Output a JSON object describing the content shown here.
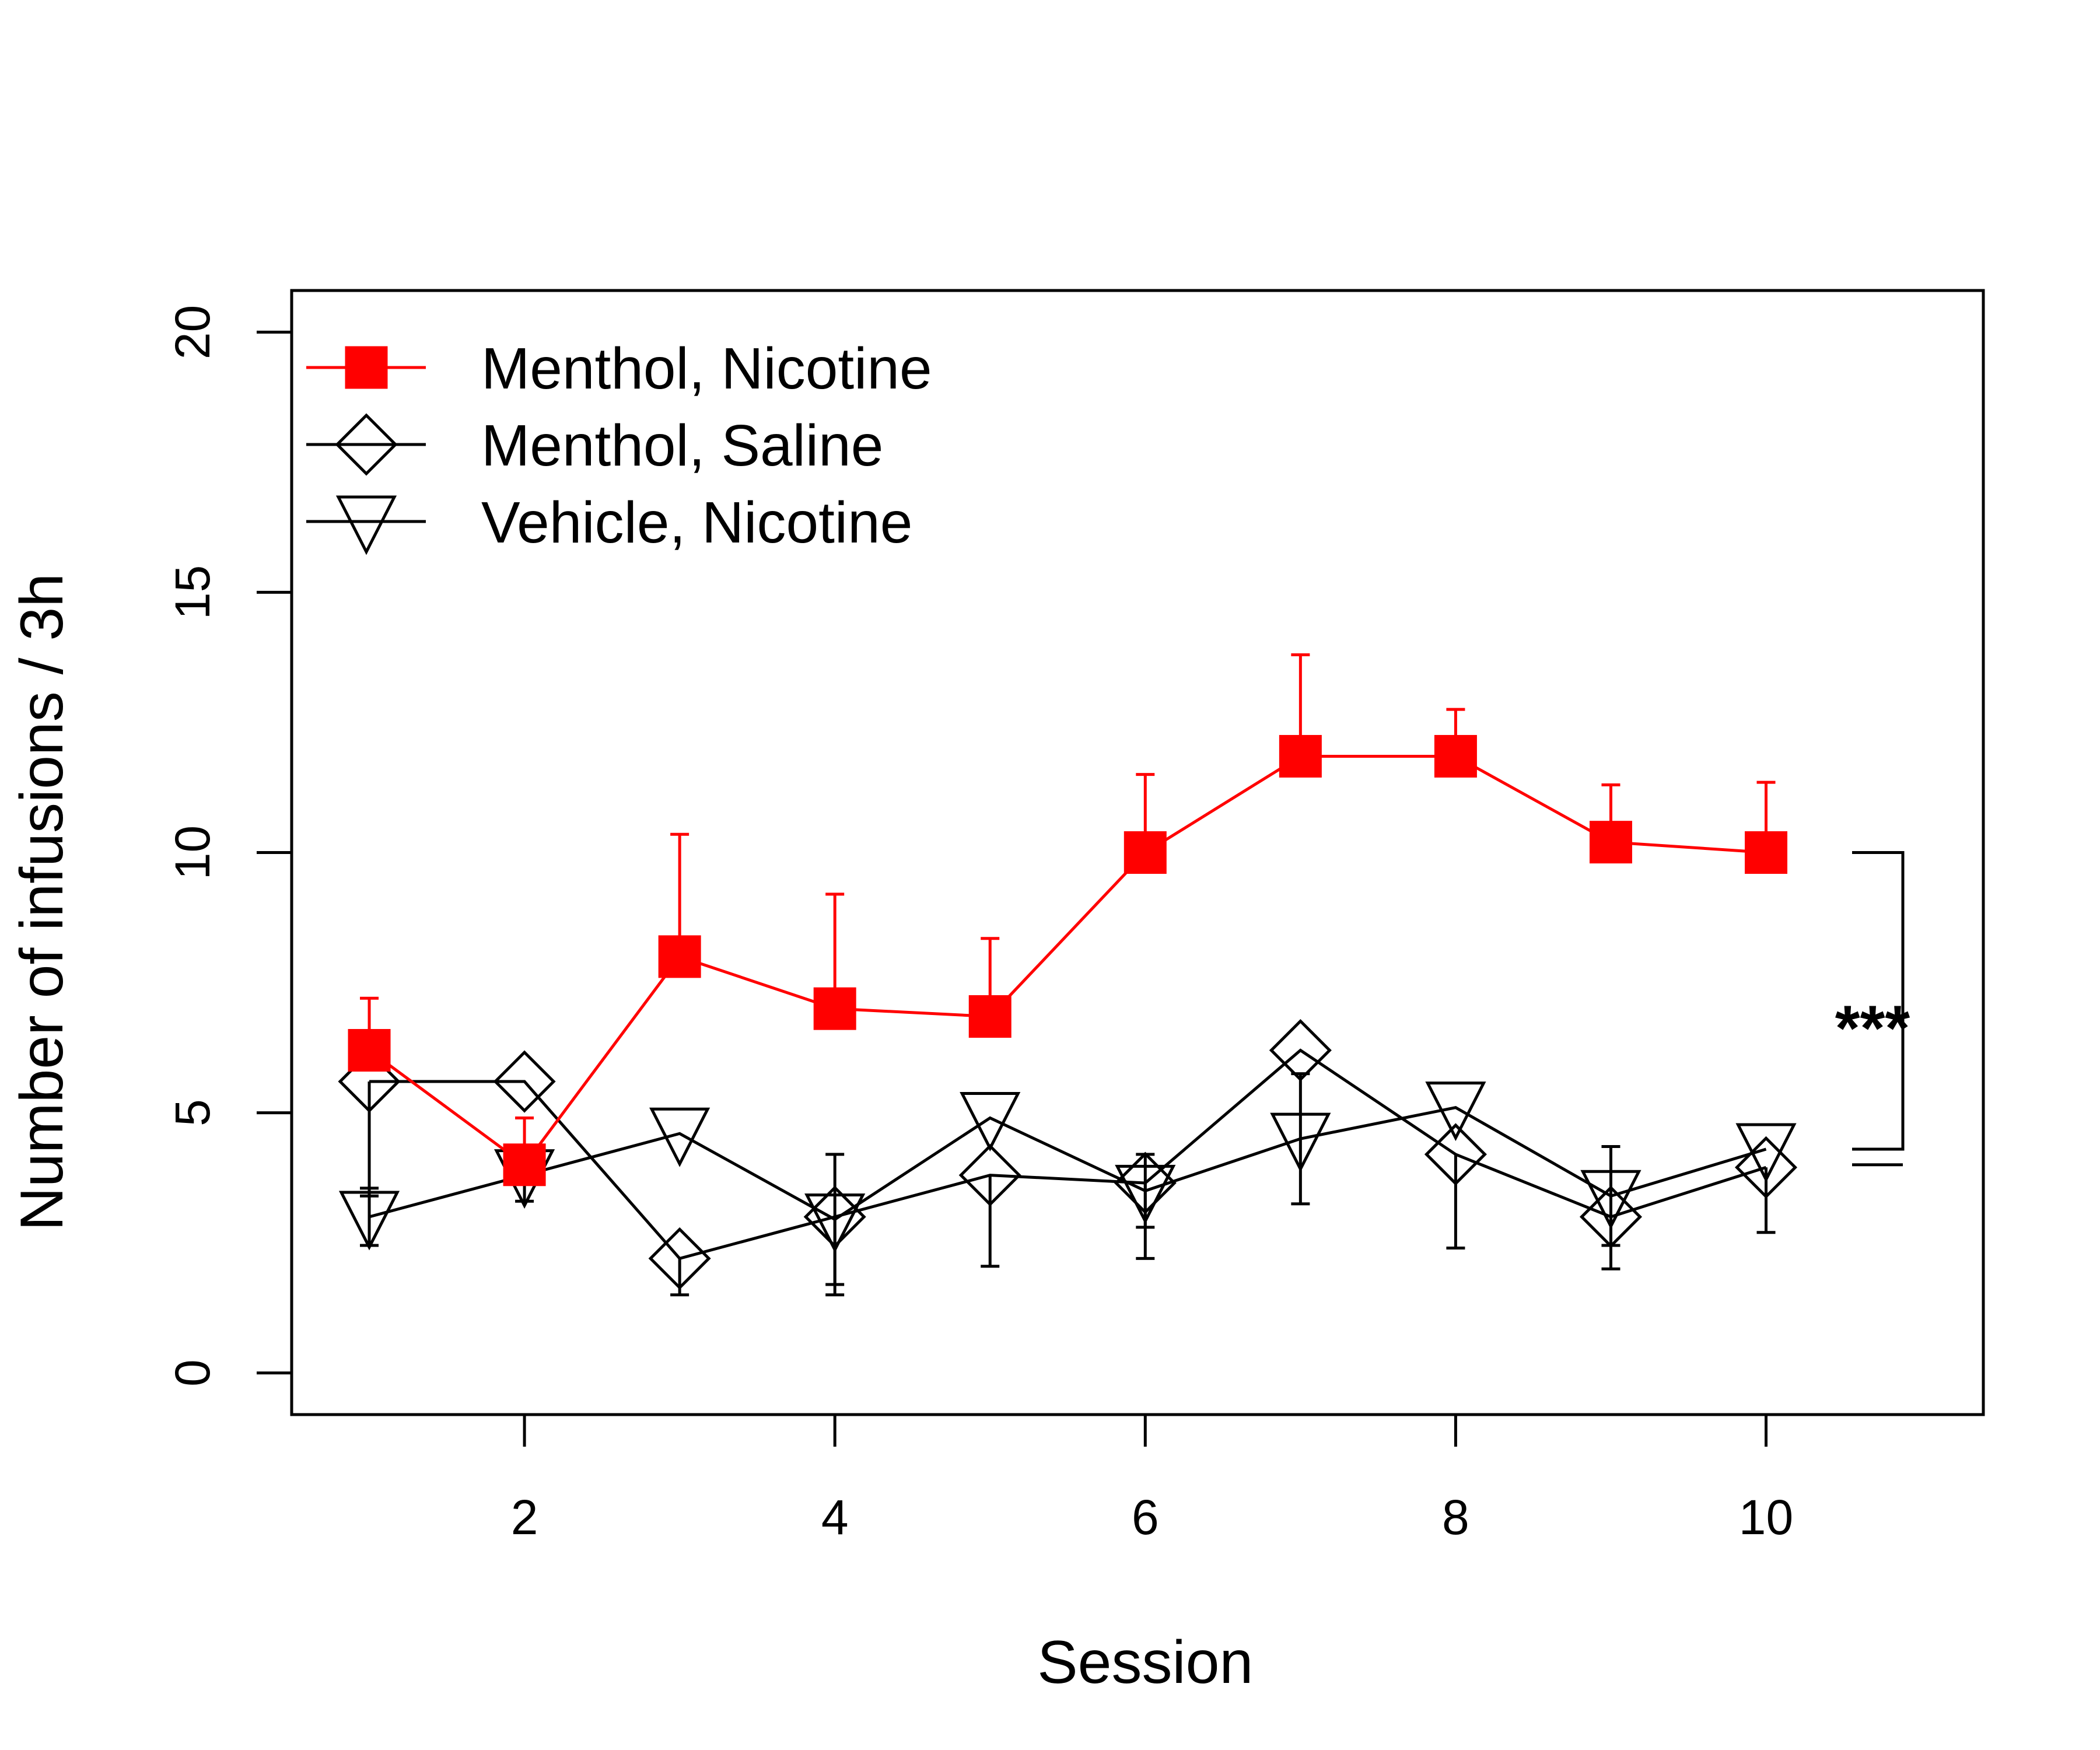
{
  "chart_data": {
    "type": "line",
    "title": "",
    "xlabel": "Session",
    "ylabel": "Number of infusions / 3h",
    "xlim": [
      0.5,
      11.4
    ],
    "ylim": [
      -0.8,
      20.8
    ],
    "xticks": [
      2,
      4,
      6,
      8,
      10
    ],
    "yticks": [
      0,
      5,
      10,
      15,
      20
    ],
    "x": [
      1,
      2,
      3,
      4,
      5,
      6,
      7,
      8,
      9,
      10
    ],
    "grid": false,
    "legend_position": "top-left",
    "series": [
      {
        "name": "Menthol, Nicotine",
        "marker": "filled-square",
        "color": "#ff0000",
        "values": [
          6.2,
          4.0,
          8.0,
          7.0,
          6.85,
          10.0,
          11.85,
          11.85,
          10.2,
          10.0
        ],
        "error": [
          1.0,
          0.9,
          2.35,
          2.2,
          1.5,
          1.5,
          1.95,
          0.9,
          1.1,
          1.35
        ],
        "error_direction": "up"
      },
      {
        "name": "Menthol, Saline",
        "marker": "open-diamond",
        "color": "#000000",
        "values": [
          5.6,
          5.6,
          2.2,
          3.0,
          3.8,
          3.65,
          6.2,
          4.2,
          3.0,
          3.95
        ],
        "error": [
          2.2,
          0.0,
          0.7,
          1.5,
          1.75,
          1.45,
          0.0,
          1.8,
          1.0,
          1.25
        ],
        "error_direction": "down"
      },
      {
        "name": "Vehicle, Nicotine",
        "marker": "open-triangle-down",
        "color": "#000000",
        "values": [
          3.0,
          3.8,
          4.6,
          2.95,
          4.9,
          3.5,
          4.5,
          5.1,
          3.4,
          4.3
        ],
        "error": [
          0.55,
          0.5,
          0.0,
          1.25,
          0.0,
          0.7,
          1.25,
          0.0,
          0.95,
          0.0
        ],
        "error_direction": "both"
      }
    ],
    "annotation": {
      "label": "***",
      "bracket_from": 10.0,
      "bracket_to": 4.3,
      "line_to": 4.0
    }
  }
}
